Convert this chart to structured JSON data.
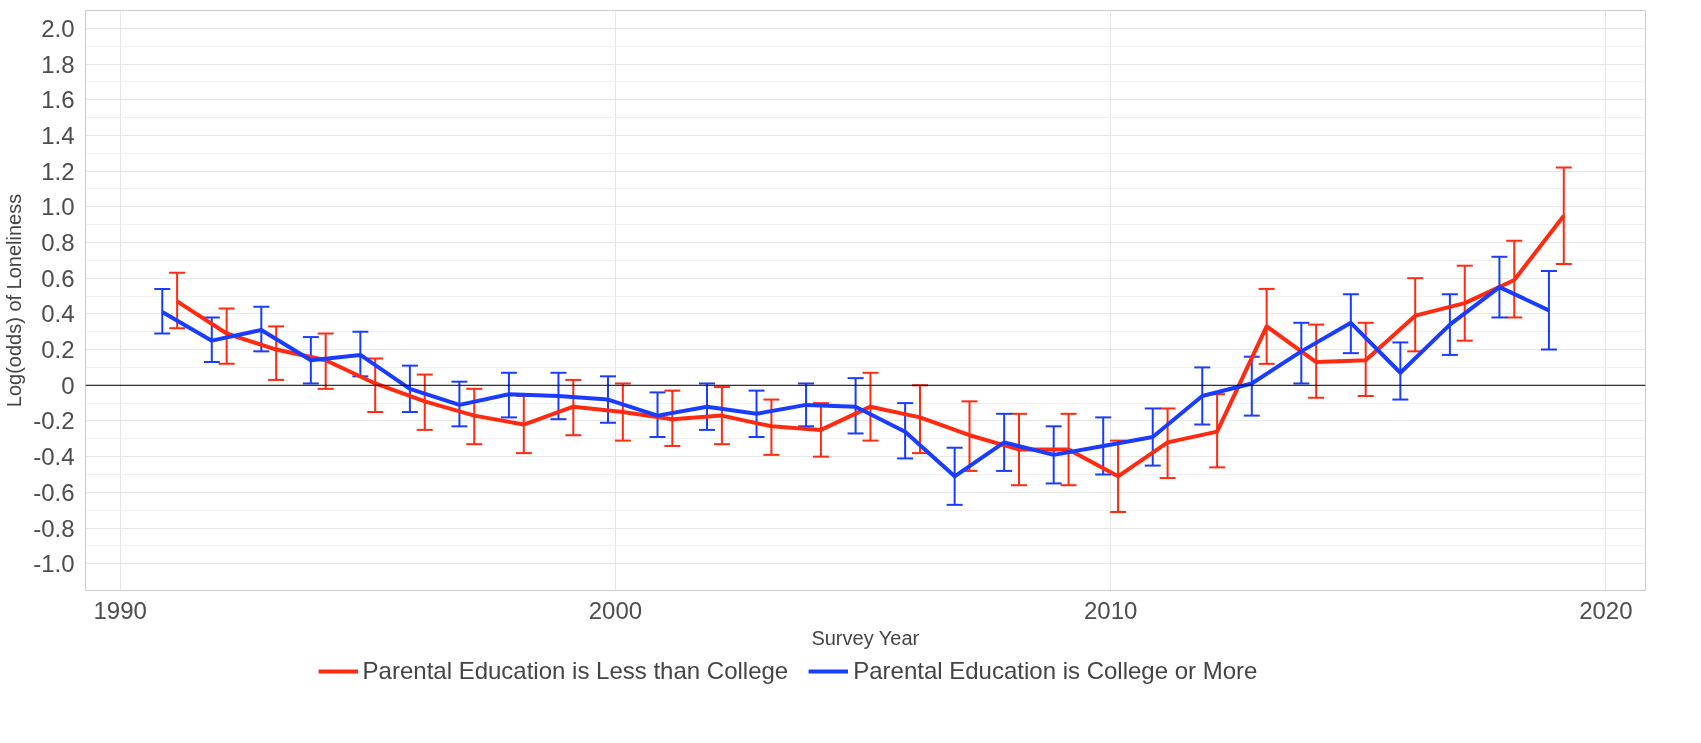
{
  "chart_data": {
    "type": "line",
    "xlabel": "Survey Year",
    "ylabel": "Log(odds) of Loneliness",
    "xlim": [
      1989.3,
      2020.8
    ],
    "xticks": [
      1990,
      2000,
      2010,
      2020
    ],
    "ylim": [
      -1.15,
      2.1
    ],
    "yticks": [
      {
        "value": -1.0,
        "label": "-1.0"
      },
      -0.8,
      -0.6,
      -0.4,
      -0.2,
      0,
      0.2,
      0.4,
      0.6,
      0.8,
      {
        "value": 1.0,
        "label": "1.0"
      },
      1.2,
      1.4,
      1.6,
      1.8,
      {
        "value": 2.0,
        "label": "2.0"
      }
    ],
    "grid": true,
    "legend": "bottom",
    "line_style": "solid",
    "marker": "none",
    "ref_lines": [
      {
        "axis": "y",
        "value": 0,
        "label": null,
        "color": "#000000"
      }
    ],
    "series": [
      {
        "name": "Parental Education is Less than College",
        "color": "#ff2a10",
        "x": [
          1991.15,
          1992.15,
          1993.15,
          1994.15,
          1995.15,
          1996.15,
          1997.15,
          1998.15,
          1999.15,
          2000.15,
          2001.15,
          2002.15,
          2003.15,
          2004.15,
          2005.15,
          2006.15,
          2007.15,
          2008.15,
          2009.15,
          2010.15,
          2011.15,
          2012.15,
          2013.15,
          2014.15,
          2015.15,
          2016.15,
          2017.15,
          2018.15,
          2019.15
        ],
        "values": [
          0.47,
          0.29,
          0.2,
          0.14,
          0.01,
          -0.09,
          -0.17,
          -0.22,
          -0.12,
          -0.15,
          -0.19,
          -0.17,
          -0.23,
          -0.25,
          -0.12,
          -0.18,
          -0.28,
          -0.36,
          -0.36,
          -0.51,
          -0.32,
          -0.26,
          0.33,
          0.13,
          0.14,
          0.39,
          0.46,
          0.59,
          0.95
        ],
        "errors": [
          [
            0.32,
            0.63
          ],
          [
            0.12,
            0.43
          ],
          [
            0.03,
            0.33
          ],
          [
            -0.02,
            0.29
          ],
          [
            -0.15,
            0.15
          ],
          [
            -0.25,
            0.06
          ],
          [
            -0.33,
            -0.02
          ],
          [
            -0.38,
            -0.06
          ],
          [
            -0.28,
            0.03
          ],
          [
            -0.31,
            0.01
          ],
          [
            -0.34,
            -0.03
          ],
          [
            -0.33,
            -0.01
          ],
          [
            -0.39,
            -0.08
          ],
          [
            -0.4,
            -0.1
          ],
          [
            -0.31,
            0.07
          ],
          [
            -0.38,
            0.0
          ],
          [
            -0.48,
            -0.09
          ],
          [
            -0.56,
            -0.16
          ],
          [
            -0.56,
            -0.16
          ],
          [
            -0.71,
            -0.31
          ],
          [
            -0.52,
            -0.13
          ],
          [
            -0.46,
            -0.05
          ],
          [
            0.12,
            0.54
          ],
          [
            -0.07,
            0.34
          ],
          [
            -0.06,
            0.35
          ],
          [
            0.19,
            0.6
          ],
          [
            0.25,
            0.67
          ],
          [
            0.38,
            0.81
          ],
          [
            0.68,
            1.22
          ]
        ]
      },
      {
        "name": "Parental Education is College or More",
        "color": "#1a3cff",
        "x": [
          1990.85,
          1991.85,
          1992.85,
          1993.85,
          1994.85,
          1995.85,
          1996.85,
          1997.85,
          1998.85,
          1999.85,
          2000.85,
          2001.85,
          2002.85,
          2003.85,
          2004.85,
          2005.85,
          2006.85,
          2007.85,
          2008.85,
          2009.85,
          2010.85,
          2011.85,
          2012.85,
          2013.85,
          2014.85,
          2015.85,
          2016.85,
          2017.85,
          2018.85
        ],
        "values": [
          0.41,
          0.25,
          0.31,
          0.14,
          0.17,
          -0.02,
          -0.11,
          -0.05,
          -0.06,
          -0.08,
          -0.17,
          -0.12,
          -0.16,
          -0.11,
          -0.12,
          -0.26,
          -0.51,
          -0.32,
          -0.39,
          -0.34,
          -0.29,
          -0.06,
          0.01,
          0.19,
          0.35,
          0.07,
          0.34,
          0.55,
          0.42
        ],
        "errors": [
          [
            0.29,
            0.54
          ],
          [
            0.13,
            0.38
          ],
          [
            0.19,
            0.44
          ],
          [
            0.01,
            0.27
          ],
          [
            0.05,
            0.3
          ],
          [
            -0.15,
            0.11
          ],
          [
            -0.23,
            0.02
          ],
          [
            -0.18,
            0.07
          ],
          [
            -0.19,
            0.07
          ],
          [
            -0.21,
            0.05
          ],
          [
            -0.29,
            -0.04
          ],
          [
            -0.25,
            0.01
          ],
          [
            -0.29,
            -0.03
          ],
          [
            -0.23,
            0.01
          ],
          [
            -0.27,
            0.04
          ],
          [
            -0.41,
            -0.1
          ],
          [
            -0.67,
            -0.35
          ],
          [
            -0.48,
            -0.16
          ],
          [
            -0.55,
            -0.23
          ],
          [
            -0.5,
            -0.18
          ],
          [
            -0.45,
            -0.13
          ],
          [
            -0.22,
            0.1
          ],
          [
            -0.17,
            0.16
          ],
          [
            0.01,
            0.35
          ],
          [
            0.18,
            0.51
          ],
          [
            -0.08,
            0.24
          ],
          [
            0.17,
            0.51
          ],
          [
            0.38,
            0.72
          ],
          [
            0.2,
            0.64
          ]
        ]
      }
    ]
  }
}
